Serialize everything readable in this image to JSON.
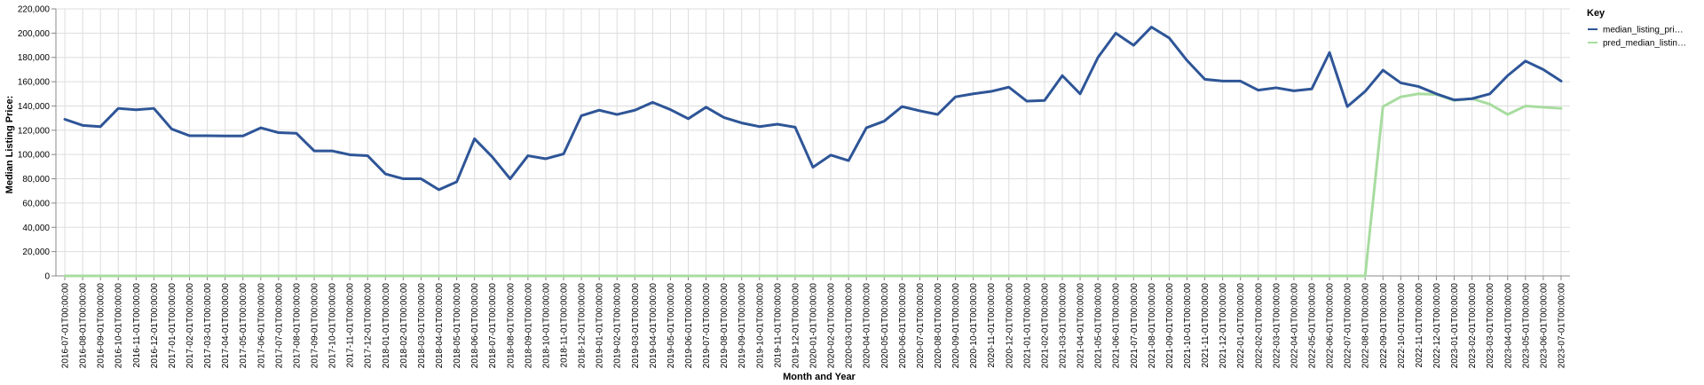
{
  "chart_data": {
    "type": "line",
    "xlabel": "Month and Year",
    "ylabel": "Median Listing Price:",
    "ylim": [
      0,
      220000
    ],
    "yticks": [
      "0",
      "20,000",
      "40,000",
      "60,000",
      "80,000",
      "100,000",
      "120,000",
      "140,000",
      "160,000",
      "180,000",
      "200,000",
      "220,000"
    ],
    "grid": true,
    "legend": {
      "title": "Key",
      "position": "right"
    },
    "x": [
      "2016-07-01T00:00:00",
      "2016-08-01T00:00:00",
      "2016-09-01T00:00:00",
      "2016-10-01T00:00:00",
      "2016-11-01T00:00:00",
      "2016-12-01T00:00:00",
      "2017-01-01T00:00:00",
      "2017-02-01T00:00:00",
      "2017-03-01T00:00:00",
      "2017-04-01T00:00:00",
      "2017-05-01T00:00:00",
      "2017-06-01T00:00:00",
      "2017-07-01T00:00:00",
      "2017-08-01T00:00:00",
      "2017-09-01T00:00:00",
      "2017-10-01T00:00:00",
      "2017-11-01T00:00:00",
      "2017-12-01T00:00:00",
      "2018-01-01T00:00:00",
      "2018-02-01T00:00:00",
      "2018-03-01T00:00:00",
      "2018-04-01T00:00:00",
      "2018-05-01T00:00:00",
      "2018-06-01T00:00:00",
      "2018-07-01T00:00:00",
      "2018-08-01T00:00:00",
      "2018-09-01T00:00:00",
      "2018-10-01T00:00:00",
      "2018-11-01T00:00:00",
      "2018-12-01T00:00:00",
      "2019-01-01T00:00:00",
      "2019-02-01T00:00:00",
      "2019-03-01T00:00:00",
      "2019-04-01T00:00:00",
      "2019-05-01T00:00:00",
      "2019-06-01T00:00:00",
      "2019-07-01T00:00:00",
      "2019-08-01T00:00:00",
      "2019-09-01T00:00:00",
      "2019-10-01T00:00:00",
      "2019-11-01T00:00:00",
      "2019-12-01T00:00:00",
      "2020-01-01T00:00:00",
      "2020-02-01T00:00:00",
      "2020-03-01T00:00:00",
      "2020-04-01T00:00:00",
      "2020-05-01T00:00:00",
      "2020-06-01T00:00:00",
      "2020-07-01T00:00:00",
      "2020-08-01T00:00:00",
      "2020-09-01T00:00:00",
      "2020-10-01T00:00:00",
      "2020-11-01T00:00:00",
      "2020-12-01T00:00:00",
      "2021-01-01T00:00:00",
      "2021-02-01T00:00:00",
      "2021-03-01T00:00:00",
      "2021-04-01T00:00:00",
      "2021-05-01T00:00:00",
      "2021-06-01T00:00:00",
      "2021-07-01T00:00:00",
      "2021-08-01T00:00:00",
      "2021-09-01T00:00:00",
      "2021-10-01T00:00:00",
      "2021-11-01T00:00:00",
      "2021-12-01T00:00:00",
      "2022-01-01T00:00:00",
      "2022-02-01T00:00:00",
      "2022-03-01T00:00:00",
      "2022-04-01T00:00:00",
      "2022-05-01T00:00:00",
      "2022-06-01T00:00:00",
      "2022-07-01T00:00:00",
      "2022-08-01T00:00:00",
      "2022-09-01T00:00:00",
      "2022-10-01T00:00:00",
      "2022-11-01T00:00:00",
      "2022-12-01T00:00:00",
      "2023-01-01T00:00:00",
      "2023-02-01T00:00:00",
      "2023-03-01T00:00:00",
      "2023-04-01T00:00:00",
      "2023-05-01T00:00:00",
      "2023-06-01T00:00:00",
      "2023-07-01T00:00:00"
    ],
    "series": [
      {
        "name": "median_listing_pri…",
        "color": "#2e5597",
        "values": [
          129000,
          124000,
          123000,
          138000,
          136900,
          138000,
          121000,
          115500,
          115500,
          115300,
          115300,
          122000,
          118000,
          117500,
          103000,
          103000,
          99800,
          99000,
          84000,
          80000,
          80000,
          71000,
          77500,
          113000,
          98000,
          80000,
          99000,
          96500,
          100500,
          132000,
          136500,
          133000,
          136500,
          143000,
          137000,
          129500,
          139000,
          130500,
          126000,
          123000,
          125000,
          122500,
          89500,
          99500,
          95000,
          122000,
          127500,
          139500,
          136000,
          133000,
          147500,
          150000,
          152000,
          155500,
          144000,
          144500,
          165000,
          150000,
          180000,
          200000,
          190000,
          205000,
          196000,
          177500,
          162000,
          160500,
          160500,
          153000,
          155000,
          152500,
          154000,
          184000,
          139500,
          152000,
          169500,
          159000,
          156000,
          150000,
          145000,
          146000,
          150000,
          165000,
          177000,
          170000,
          160500
        ]
      },
      {
        "name": "pred_median_listin…",
        "color": "#a8dca0",
        "values": [
          0,
          0,
          0,
          0,
          0,
          0,
          0,
          0,
          0,
          0,
          0,
          0,
          0,
          0,
          0,
          0,
          0,
          0,
          0,
          0,
          0,
          0,
          0,
          0,
          0,
          0,
          0,
          0,
          0,
          0,
          0,
          0,
          0,
          0,
          0,
          0,
          0,
          0,
          0,
          0,
          0,
          0,
          0,
          0,
          0,
          0,
          0,
          0,
          0,
          0,
          0,
          0,
          0,
          0,
          0,
          0,
          0,
          0,
          0,
          0,
          0,
          0,
          0,
          0,
          0,
          0,
          0,
          0,
          0,
          0,
          0,
          0,
          0,
          0,
          139500,
          147500,
          150000,
          149500,
          144500,
          146000,
          141500,
          133000,
          140000,
          139000,
          138000
        ]
      }
    ]
  }
}
